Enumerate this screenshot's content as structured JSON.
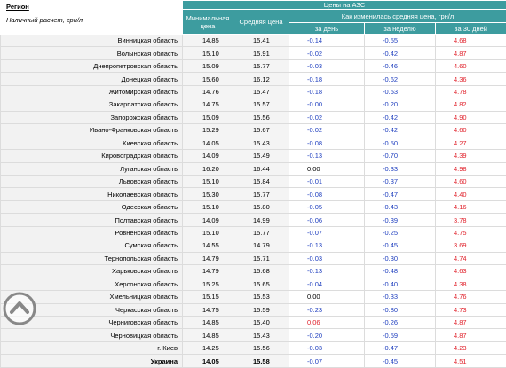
{
  "header": {
    "region": "Регион",
    "payment": "Наличный расчет, грн/л",
    "group": "Цены на АЗС",
    "min": "Минимальная цена",
    "avg": "Средняя цена",
    "change": "Как изменилась средняя цена, грн/л",
    "day": "за день",
    "week": "за неделю",
    "month": "за 30 дней"
  },
  "table": {
    "rows": [
      [
        "Винницкая область",
        "14.85",
        "15.41",
        "-0.14",
        "-0.55",
        "4.68"
      ],
      [
        "Волынская область",
        "15.10",
        "15.91",
        "-0.02",
        "-0.42",
        "4.87"
      ],
      [
        "Днепропетровская область",
        "15.09",
        "15.77",
        "-0.03",
        "-0.46",
        "4.60"
      ],
      [
        "Донецкая область",
        "15.60",
        "16.12",
        "-0.18",
        "-0.62",
        "4.36"
      ],
      [
        "Житомирская область",
        "14.76",
        "15.47",
        "-0.18",
        "-0.53",
        "4.78"
      ],
      [
        "Закарпатская область",
        "14.75",
        "15.57",
        "-0.00",
        "-0.20",
        "4.82"
      ],
      [
        "Запорожская область",
        "15.09",
        "15.56",
        "-0.02",
        "-0.42",
        "4.90"
      ],
      [
        "Ивано-Франковская область",
        "15.29",
        "15.67",
        "-0.02",
        "-0.42",
        "4.60"
      ],
      [
        "Киевская область",
        "14.05",
        "15.43",
        "-0.08",
        "-0.50",
        "4.27"
      ],
      [
        "Кировоградская область",
        "14.09",
        "15.49",
        "-0.13",
        "-0.70",
        "4.39"
      ],
      [
        "Луганская область",
        "16.20",
        "16.44",
        "0.00",
        "-0.33",
        "4.98"
      ],
      [
        "Львовская область",
        "15.10",
        "15.84",
        "-0.01",
        "-0.37",
        "4.60"
      ],
      [
        "Николаевская область",
        "15.30",
        "15.77",
        "-0.08",
        "-0.47",
        "4.40"
      ],
      [
        "Одесская область",
        "15.10",
        "15.80",
        "-0.05",
        "-0.43",
        "4.16"
      ],
      [
        "Полтавская область",
        "14.09",
        "14.99",
        "-0.06",
        "-0.39",
        "3.78"
      ],
      [
        "Ровненская область",
        "15.10",
        "15.77",
        "-0.07",
        "-0.25",
        "4.75"
      ],
      [
        "Сумская область",
        "14.55",
        "14.79",
        "-0.13",
        "-0.45",
        "3.69"
      ],
      [
        "Тернопольская область",
        "14.79",
        "15.71",
        "-0.03",
        "-0.30",
        "4.74"
      ],
      [
        "Харьковская область",
        "14.79",
        "15.68",
        "-0.13",
        "-0.48",
        "4.63"
      ],
      [
        "Херсонская область",
        "15.25",
        "15.65",
        "-0.04",
        "-0.40",
        "4.38"
      ],
      [
        "Хмельницкая область",
        "15.15",
        "15.53",
        "0.00",
        "-0.33",
        "4.76"
      ],
      [
        "Черкасская область",
        "14.75",
        "15.59",
        "-0.23",
        "-0.80",
        "4.73"
      ],
      [
        "Черниговская область",
        "14.85",
        "15.40",
        "0.06",
        "-0.26",
        "4.87"
      ],
      [
        "Черновицкая область",
        "14.85",
        "15.43",
        "-0.20",
        "-0.59",
        "4.87"
      ],
      [
        "г. Киев",
        "14.25",
        "15.56",
        "-0.03",
        "-0.47",
        "4.23"
      ],
      [
        "Украина",
        "14.05",
        "15.58",
        "-0.07",
        "-0.45",
        "4.51"
      ]
    ]
  }
}
